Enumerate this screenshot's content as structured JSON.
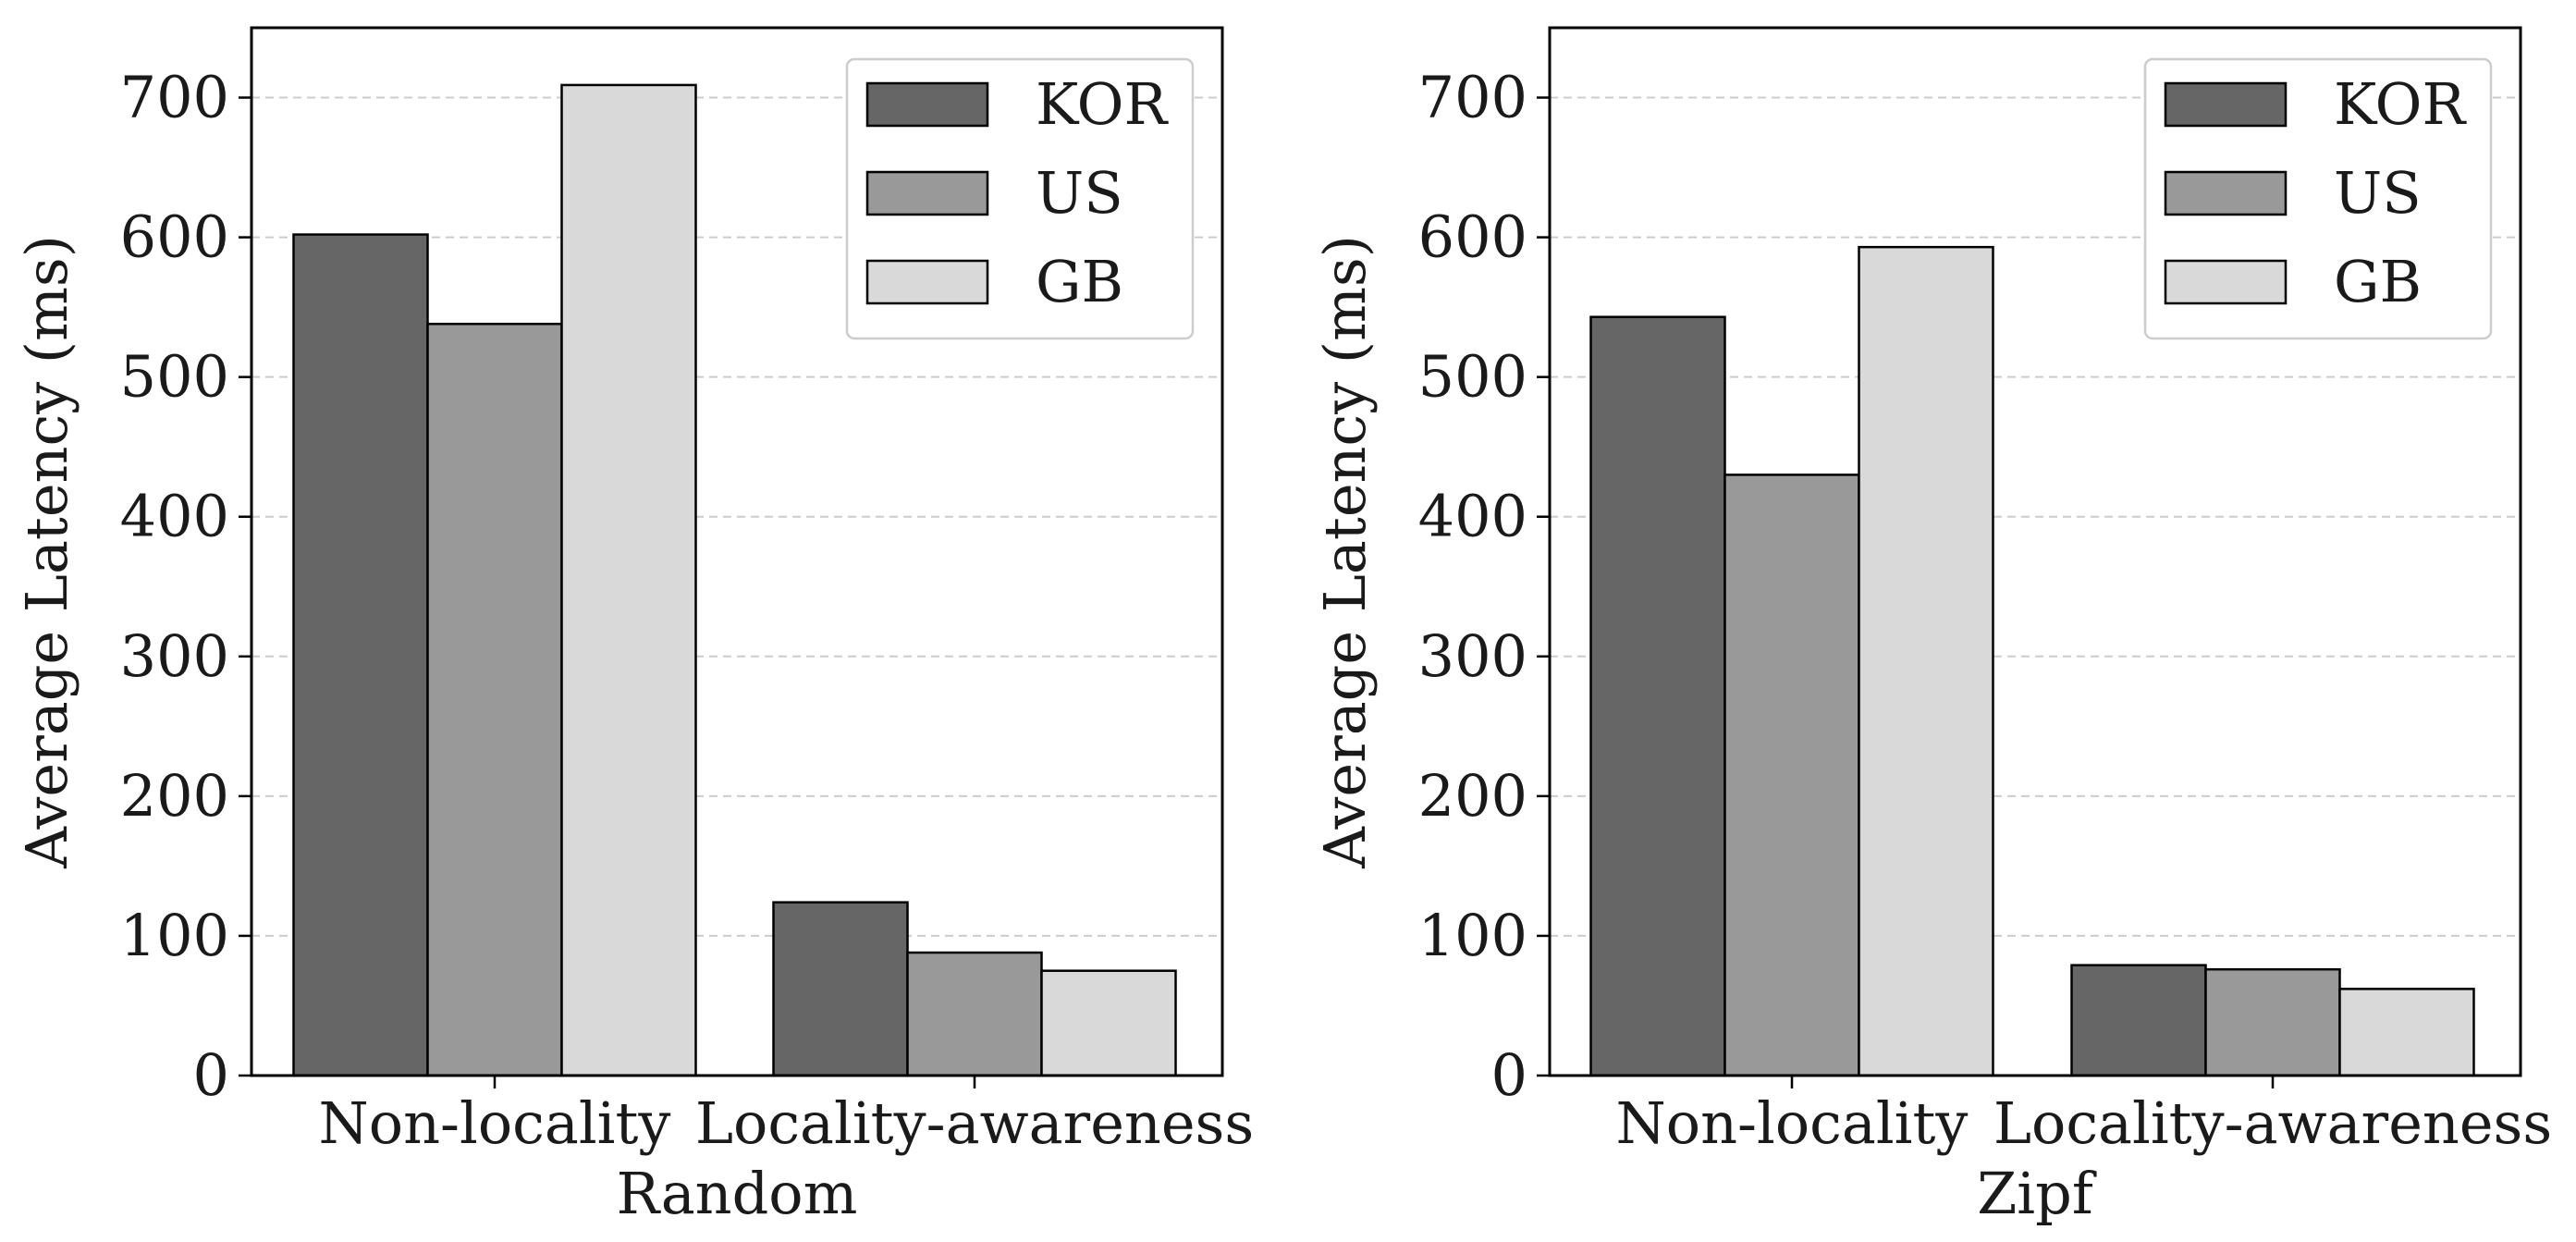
{
  "chart_data": [
    {
      "type": "bar",
      "title": "",
      "xlabel": "Random",
      "ylabel": "Average Latency (ms)",
      "categories": [
        "Non-locality",
        "Locality-awareness"
      ],
      "series": [
        {
          "name": "KOR",
          "values": [
            602,
            124
          ],
          "color": "#666666"
        },
        {
          "name": "US",
          "values": [
            538,
            88
          ],
          "color": "#999999"
        },
        {
          "name": "GB",
          "values": [
            709,
            75
          ],
          "color": "#d9d9d9"
        }
      ],
      "ylim": [
        0,
        750
      ],
      "yticks": [
        0,
        100,
        200,
        300,
        400,
        500,
        600,
        700
      ],
      "grid": true,
      "legend_position": "top-right"
    },
    {
      "type": "bar",
      "title": "",
      "xlabel": "Zipf",
      "ylabel": "Average Latency (ms)",
      "categories": [
        "Non-locality",
        "Locality-awareness"
      ],
      "series": [
        {
          "name": "KOR",
          "values": [
            543,
            79
          ],
          "color": "#666666"
        },
        {
          "name": "US",
          "values": [
            430,
            76
          ],
          "color": "#999999"
        },
        {
          "name": "GB",
          "values": [
            593,
            62
          ],
          "color": "#d9d9d9"
        }
      ],
      "ylim": [
        0,
        750
      ],
      "yticks": [
        0,
        100,
        200,
        300,
        400,
        500,
        600,
        700
      ],
      "grid": true,
      "legend_position": "top-right"
    }
  ]
}
